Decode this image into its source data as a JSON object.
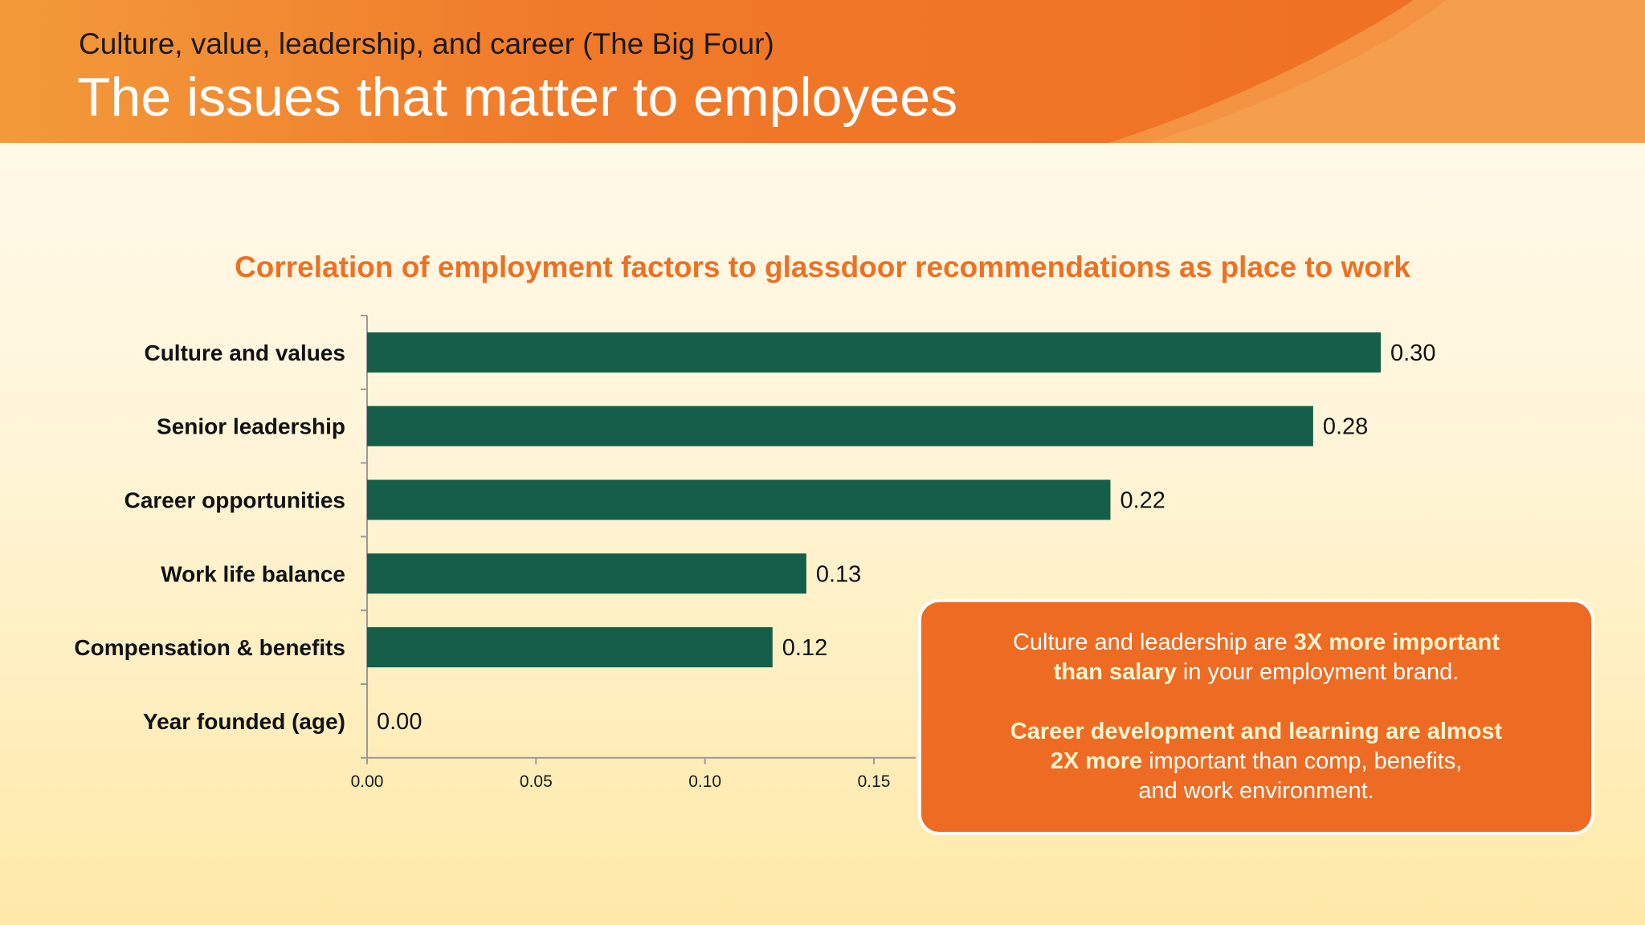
{
  "header": {
    "subtitle": "Culture, value, leadership, and career (The Big Four)",
    "title": "The issues that matter to employees"
  },
  "chart_data": {
    "type": "bar",
    "orientation": "horizontal",
    "title": "Correlation of employment factors to glassdoor recommendations as place to work",
    "categories": [
      "Culture and values",
      "Senior leadership",
      "Career opportunities",
      "Work life balance",
      "Compensation & benefits",
      "Year founded (age)"
    ],
    "values": [
      0.3,
      0.28,
      0.22,
      0.13,
      0.12,
      0.0
    ],
    "data_labels": [
      "0.30",
      "0.28",
      "0.22",
      "0.13",
      "0.12",
      "0.00"
    ],
    "xticks": [
      "0.00",
      "0.05",
      "0.10",
      "0.15"
    ],
    "xlim": [
      0,
      0.3
    ],
    "bar_color": "#155e4a",
    "grid": false,
    "legend": "none"
  },
  "callout": {
    "p1_a": "Culture and leadership are ",
    "p1_b": "3X more important",
    "p1_c": "than salary",
    "p1_d": " in your employment brand.",
    "p2_a": "Career development and learning are almost",
    "p2_b": "2X more",
    "p2_c": " important than comp, benefits,",
    "p2_d": "and work environment."
  },
  "colors": {
    "accent": "#f07825",
    "bar": "#155e4a",
    "title_orange": "#ec7125",
    "callout_bg": "#ee6b23"
  }
}
